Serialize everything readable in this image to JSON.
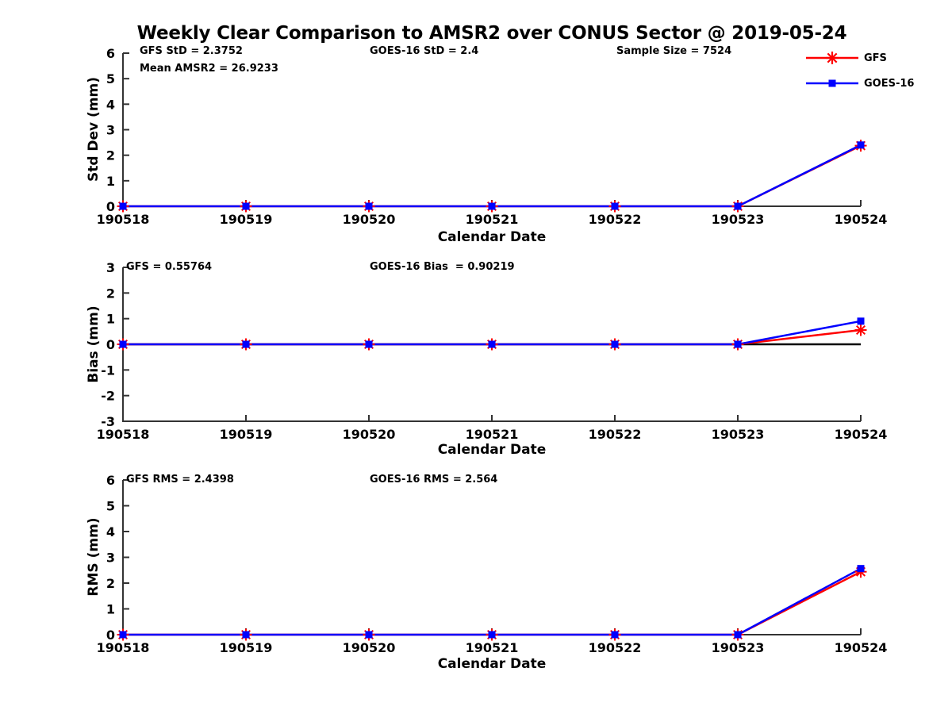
{
  "title": "Weekly Clear Comparison to AMSR2 over CONUS Sector @ 2019-05-24",
  "colors": {
    "gfs_red": "#ff0000",
    "goes_blue": "#0000ff",
    "axis": "#333333",
    "zero_line": "#000000",
    "text": "#000000"
  },
  "legend": {
    "items": [
      {
        "label": "GFS"
      },
      {
        "label": "GOES-16"
      }
    ]
  },
  "chart_data": [
    {
      "type": "line",
      "name": "std-dev-panel",
      "x": [
        "190518",
        "190519",
        "190520",
        "190521",
        "190522",
        "190523",
        "190524"
      ],
      "xlabel": "Calendar Date",
      "ylabel": "Std Dev (mm)",
      "ylim": [
        0,
        6
      ],
      "yticks": [
        0,
        1,
        2,
        3,
        4,
        5,
        6
      ],
      "grid": false,
      "legend_position": "top-right",
      "series": [
        {
          "name": "GFS",
          "color": "#ff0000",
          "marker": "asterisk",
          "values": [
            0,
            0,
            0,
            0,
            0,
            0,
            2.3752
          ]
        },
        {
          "name": "GOES-16",
          "color": "#0000ff",
          "marker": "square",
          "values": [
            0,
            0,
            0,
            0,
            0,
            0,
            2.4
          ]
        }
      ],
      "annotations": [
        "GFS StD = 2.3752",
        "Mean AMSR2 = 26.9233",
        "GOES-16 StD = 2.4",
        "Sample Size = 7524"
      ]
    },
    {
      "type": "line",
      "name": "bias-panel",
      "x": [
        "190518",
        "190519",
        "190520",
        "190521",
        "190522",
        "190523",
        "190524"
      ],
      "xlabel": "Calendar Date",
      "ylabel": "Bias (mm)",
      "ylim": [
        -3,
        3
      ],
      "yticks": [
        -3,
        -2,
        -1,
        0,
        1,
        2,
        3
      ],
      "grid": false,
      "zero_line": true,
      "series": [
        {
          "name": "GFS",
          "color": "#ff0000",
          "marker": "asterisk",
          "values": [
            0,
            0,
            0,
            0,
            0,
            0,
            0.55764
          ]
        },
        {
          "name": "GOES-16",
          "color": "#0000ff",
          "marker": "square",
          "values": [
            0,
            0,
            0,
            0,
            0,
            0,
            0.90219
          ]
        }
      ],
      "annotations": [
        "GFS = 0.55764",
        "GOES-16 Bias  = 0.90219"
      ]
    },
    {
      "type": "line",
      "name": "rms-panel",
      "x": [
        "190518",
        "190519",
        "190520",
        "190521",
        "190522",
        "190523",
        "190524"
      ],
      "xlabel": "Calendar Date",
      "ylabel": "RMS (mm)",
      "ylim": [
        0,
        6
      ],
      "yticks": [
        0,
        1,
        2,
        3,
        4,
        5,
        6
      ],
      "grid": false,
      "series": [
        {
          "name": "GFS",
          "color": "#ff0000",
          "marker": "asterisk",
          "values": [
            0,
            0,
            0,
            0,
            0,
            0,
            2.4398
          ]
        },
        {
          "name": "GOES-16",
          "color": "#0000ff",
          "marker": "square",
          "values": [
            0,
            0,
            0,
            0,
            0,
            0,
            2.564
          ]
        }
      ],
      "annotations": [
        "GFS RMS = 2.4398",
        "GOES-16 RMS = 2.564"
      ]
    }
  ]
}
